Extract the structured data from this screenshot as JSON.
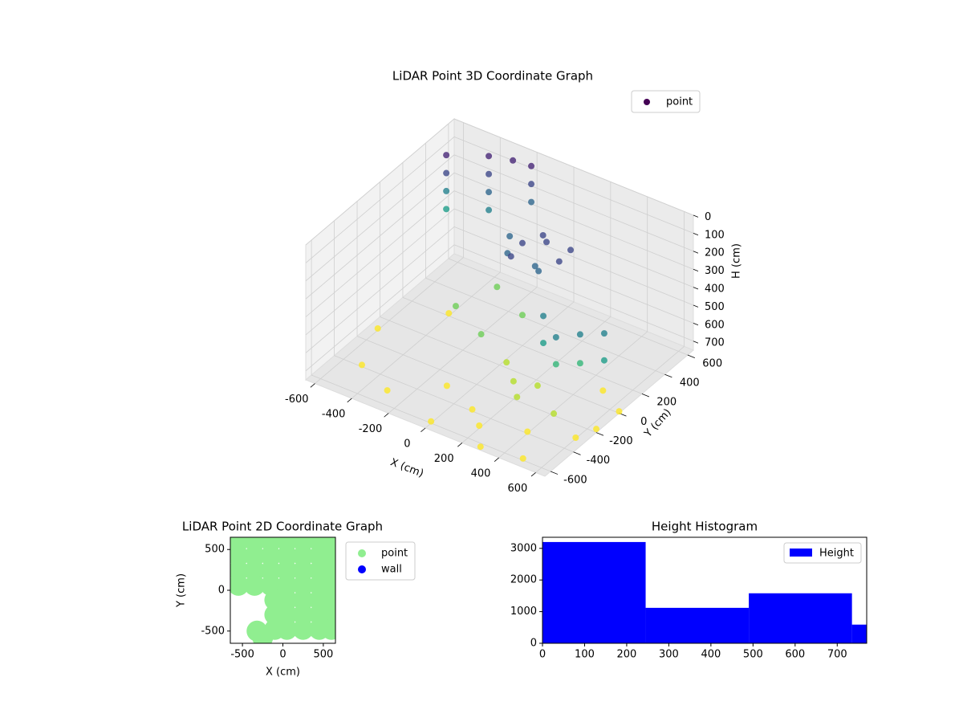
{
  "chart_data": [
    {
      "type": "scatter3d",
      "title": "LiDAR Point 3D Coordinate Graph",
      "xlabel": "X (cm)",
      "ylabel": "Y (cm)",
      "zlabel": "H (cm)",
      "xlim": [
        -650,
        650
      ],
      "ylim": [
        -650,
        650
      ],
      "zlim": [
        0,
        750
      ],
      "z_inverted": true,
      "xticks": [
        -600,
        -400,
        -200,
        0,
        200,
        400,
        600
      ],
      "yticks": [
        -600,
        -400,
        -200,
        0,
        200,
        400,
        600
      ],
      "zticks": [
        0,
        100,
        200,
        300,
        400,
        500,
        600,
        700
      ],
      "colormap": "viridis",
      "legend": "upper right",
      "grid": true,
      "series": [
        {
          "name": "point",
          "color": "#440154",
          "x": [
            -600,
            -600,
            -600,
            -600,
            -400,
            -400,
            -400,
            -400,
            -200,
            -200,
            -200,
            -300,
            0,
            100,
            200,
            150,
            -50,
            50,
            200,
            -100,
            100,
            0,
            300,
            300,
            400,
            400,
            500,
            500,
            600,
            600,
            -300,
            -100,
            100,
            200,
            300,
            0,
            -200,
            -500,
            -300,
            0,
            200,
            400,
            600,
            500,
            300,
            -100,
            100,
            -600,
            650,
            650,
            500,
            -400,
            250,
            450
          ],
          "y": [
            500,
            500,
            500,
            500,
            550,
            550,
            550,
            550,
            600,
            600,
            600,
            600,
            200,
            250,
            200,
            100,
            150,
            300,
            300,
            250,
            150,
            100,
            -100,
            -100,
            -150,
            -150,
            -100,
            -100,
            -50,
            -50,
            100,
            0,
            -100,
            -200,
            -150,
            200,
            300,
            -400,
            -500,
            -600,
            -500,
            -400,
            -300,
            -600,
            -650,
            -300,
            -400,
            -100,
            0,
            -200,
            100,
            200,
            -250,
            -250
          ],
          "z": [
            100,
            200,
            300,
            400,
            50,
            150,
            250,
            350,
            50,
            150,
            250,
            60,
            180,
            160,
            200,
            220,
            230,
            170,
            190,
            210,
            240,
            200,
            300,
            450,
            350,
            500,
            320,
            480,
            300,
            450,
            600,
            620,
            640,
            650,
            660,
            580,
            560,
            740,
            745,
            740,
            735,
            740,
            745,
            740,
            730,
            745,
            740,
            740,
            740,
            730,
            740,
            735,
            690,
            700
          ]
        }
      ]
    },
    {
      "type": "scatter",
      "title": "LiDAR Point 2D Coordinate Graph",
      "xlabel": "X (cm)",
      "ylabel": "Y (cm)",
      "xlim": [
        -650,
        650
      ],
      "ylim": [
        -650,
        650
      ],
      "xticks": [
        -500,
        0,
        500
      ],
      "yticks": [
        -500,
        0,
        500
      ],
      "legend": "outside right",
      "series": [
        {
          "name": "point",
          "color": "#90ee90",
          "x": [
            -550,
            -350,
            -150,
            50,
            250,
            450,
            600,
            -550,
            -350,
            -150,
            50,
            250,
            450,
            600,
            -550,
            -350,
            -150,
            50,
            250,
            450,
            600,
            -550,
            -350,
            -150,
            50,
            250,
            450,
            600,
            -100,
            50,
            250,
            450,
            600,
            -100,
            50,
            250,
            450,
            600,
            -100,
            50,
            250,
            450,
            600,
            -250,
            -320
          ],
          "y": [
            600,
            600,
            600,
            600,
            600,
            600,
            600,
            420,
            420,
            420,
            420,
            420,
            420,
            420,
            240,
            240,
            240,
            240,
            240,
            240,
            240,
            60,
            60,
            60,
            60,
            60,
            60,
            60,
            -120,
            -120,
            -120,
            -120,
            -120,
            -300,
            -300,
            -300,
            -300,
            -300,
            -480,
            -480,
            -480,
            -480,
            -480,
            -580,
            -500
          ]
        },
        {
          "name": "wall",
          "color": "#0000ff",
          "x": [],
          "y": []
        }
      ]
    },
    {
      "type": "histogram",
      "title": "Height Histogram",
      "name": "Height",
      "color": "#0000ff",
      "bins": [
        0,
        245,
        490,
        735,
        980
      ],
      "values": [
        3200,
        1120,
        1580,
        590
      ],
      "xlim": [
        0,
        770
      ],
      "ylim": [
        0,
        3350
      ],
      "xticks": [
        0,
        100,
        200,
        300,
        400,
        500,
        600,
        700
      ],
      "yticks": [
        0,
        1000,
        2000,
        3000
      ],
      "legend": "upper right"
    }
  ]
}
